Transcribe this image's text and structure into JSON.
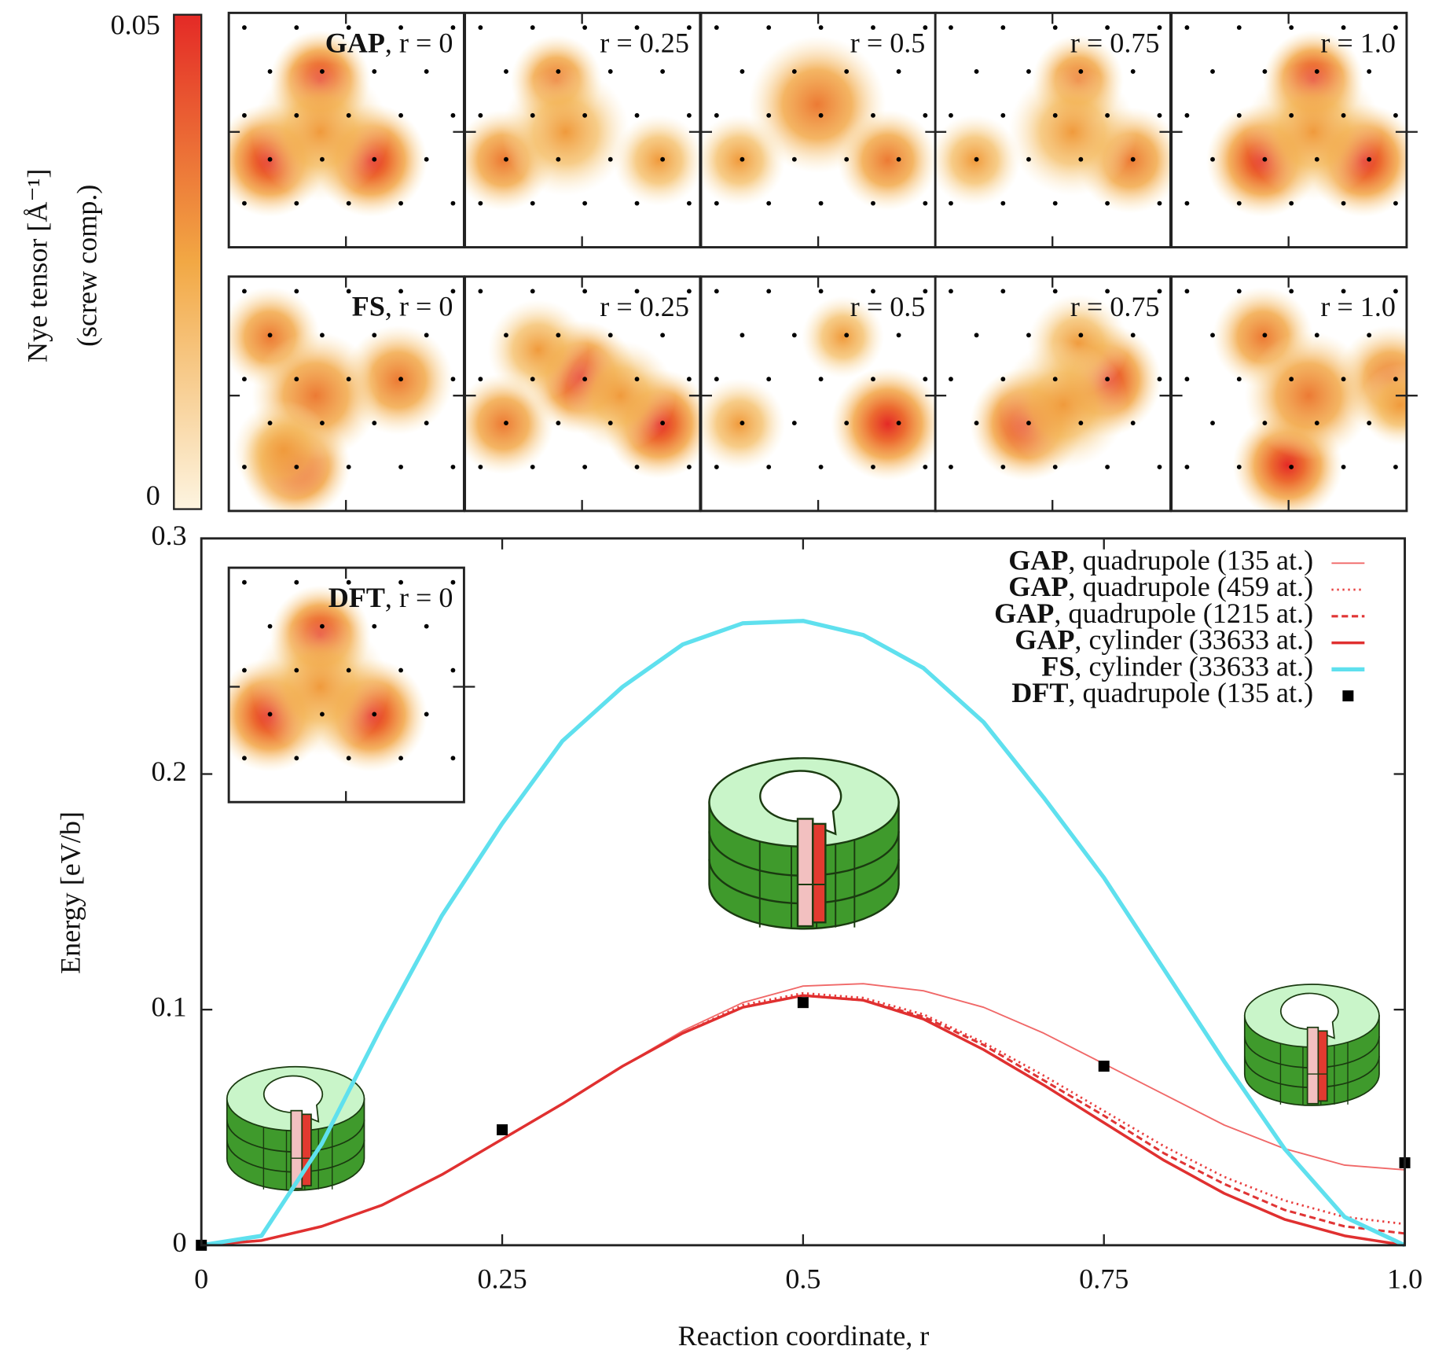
{
  "chart_data": [
    {
      "type": "heatmap",
      "colorbar": {
        "label": "Nye tensor [Å⁻¹]",
        "sublabel": "(screw comp.)",
        "clim": [
          0,
          0.05
        ],
        "ticks": [
          0,
          0.05
        ]
      },
      "rows": [
        {
          "labels": [
            "GAP, r = 0",
            "r = 0.25",
            "r = 0.5",
            "r = 0.75",
            "r = 1.0"
          ]
        },
        {
          "labels": [
            "FS, r = 0",
            "r = 0.25",
            "r = 0.5",
            "r = 0.75",
            "r = 1.0"
          ]
        }
      ]
    },
    {
      "type": "line",
      "x_label": "Reaction coordinate, r",
      "y_label": "Energy [eV/b]",
      "inset_label": "DFT, r = 0",
      "xlim": [
        0,
        1
      ],
      "ylim": [
        0,
        0.3
      ],
      "xticks": [
        0,
        0.25,
        0.5,
        0.75,
        {
          "value": 1,
          "label": "1.0"
        }
      ],
      "yticks": [
        0,
        0.1,
        0.2,
        0.3
      ],
      "legend": "upper right",
      "x": [
        0,
        0.05,
        0.1,
        0.15,
        0.2,
        0.25,
        0.3,
        0.35,
        0.4,
        0.45,
        0.5,
        0.55,
        0.6,
        0.65,
        0.7,
        0.75,
        0.8,
        0.85,
        0.9,
        0.95,
        1
      ],
      "series": [
        {
          "name": "GAP, quadrupole (135 at.)",
          "color": "#f06868",
          "line_style": "thin",
          "values": [
            0,
            0.002,
            0.008,
            0.017,
            0.03,
            0.045,
            0.06,
            0.076,
            0.091,
            0.103,
            0.11,
            0.111,
            0.108,
            0.101,
            0.09,
            0.077,
            0.064,
            0.051,
            0.041,
            0.034,
            0.032
          ]
        },
        {
          "name": "GAP, quadrupole (459 at.)",
          "color": "#e84040",
          "line_style": "dotted",
          "values": [
            0,
            0.002,
            0.008,
            0.017,
            0.03,
            0.045,
            0.06,
            0.076,
            0.09,
            0.102,
            0.107,
            0.105,
            0.098,
            0.086,
            0.072,
            0.057,
            0.042,
            0.029,
            0.019,
            0.012,
            0.009
          ]
        },
        {
          "name": "GAP, quadrupole (1215 at.)",
          "color": "#e03535",
          "line_style": "dashed",
          "values": [
            0,
            0.002,
            0.008,
            0.017,
            0.03,
            0.045,
            0.06,
            0.076,
            0.09,
            0.101,
            0.106,
            0.104,
            0.097,
            0.085,
            0.07,
            0.055,
            0.039,
            0.026,
            0.015,
            0.008,
            0.005
          ]
        },
        {
          "name": "GAP, cylinder (33633 at.)",
          "color": "#e03030",
          "line_style": "solid",
          "values": [
            0,
            0.002,
            0.008,
            0.017,
            0.03,
            0.045,
            0.06,
            0.076,
            0.09,
            0.101,
            0.106,
            0.104,
            0.096,
            0.083,
            0.068,
            0.052,
            0.036,
            0.022,
            0.011,
            0.004,
            0
          ]
        },
        {
          "name": "FS, cylinder (33633 at.)",
          "color": "#5fe0ee",
          "line_style": "thick",
          "values": [
            0,
            0.004,
            0.043,
            0.093,
            0.14,
            0.179,
            0.214,
            0.237,
            0.255,
            0.264,
            0.265,
            0.259,
            0.245,
            0.222,
            0.19,
            0.156,
            0.117,
            0.078,
            0.041,
            0.012,
            0
          ]
        },
        {
          "name": "DFT, quadrupole (135 at.)",
          "color": "#000000",
          "marker": "square",
          "x": [
            0,
            0.25,
            0.5,
            0.75,
            1
          ],
          "values": [
            0,
            0.049,
            0.103,
            0.076,
            0.035
          ]
        }
      ]
    }
  ]
}
